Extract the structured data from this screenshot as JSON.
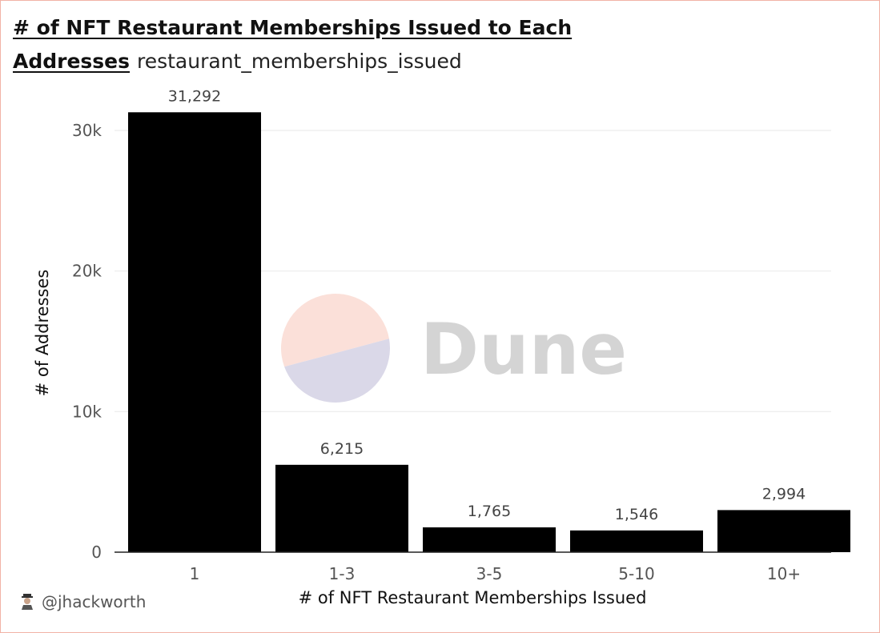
{
  "header": {
    "title_line1": "# of NFT Restaurant Memberships Issued to Each",
    "title_line2": "Addresses",
    "subtitle": "restaurant_memberships_issued"
  },
  "watermark": {
    "text": "Dune",
    "colors": {
      "top": "#fbe0d9",
      "bottom": "#dad8e8",
      "text": "#d4d4d4"
    }
  },
  "attribution": {
    "handle": "@jhackworth"
  },
  "chart_data": {
    "type": "bar",
    "categories": [
      "1",
      "1-3",
      "3-5",
      "5-10",
      "10+"
    ],
    "values": [
      31292,
      6215,
      1765,
      1546,
      2994
    ],
    "value_labels": [
      "31,292",
      "6,215",
      "1,765",
      "1,546",
      "2,994"
    ],
    "xlabel": "# of NFT Restaurant Memberships Issued",
    "ylabel": "# of Addresses",
    "ylim": [
      0,
      30000
    ],
    "yticks": [
      0,
      10000,
      20000,
      30000
    ],
    "ytick_labels": [
      "0",
      "10k",
      "20k",
      "30k"
    ],
    "grid": true,
    "bar_color": "#000000"
  }
}
